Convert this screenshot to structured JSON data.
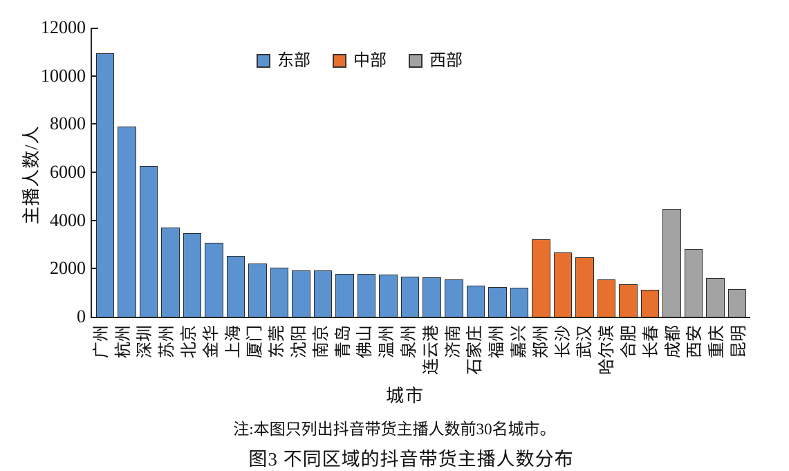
{
  "figure": {
    "note": "注:本图只列出抖音带货主播人数前30名城市。",
    "caption": "图3  不同区域的抖音带货主播人数分布"
  },
  "chart_data": {
    "type": "bar",
    "title": "图3  不同区域的抖音带货主播人数分布",
    "xlabel": "城市",
    "ylabel": "主播人数/人",
    "ylim": [
      0,
      12000
    ],
    "yticks": [
      0,
      2000,
      4000,
      6000,
      8000,
      10000,
      12000
    ],
    "grid": false,
    "legend_position": "top-center-inside",
    "axis_color": "#222222",
    "bar_border_color": "#2b2b2b",
    "regions": [
      {
        "name": "东部",
        "color": "#5B93D1"
      },
      {
        "name": "中部",
        "color": "#E8702F"
      },
      {
        "name": "西部",
        "color": "#A3A3A3"
      }
    ],
    "bars": [
      {
        "city": "广州",
        "region": "东部",
        "value": 10950
      },
      {
        "city": "杭州",
        "region": "东部",
        "value": 7900
      },
      {
        "city": "深圳",
        "region": "东部",
        "value": 6270
      },
      {
        "city": "苏州",
        "region": "东部",
        "value": 3710
      },
      {
        "city": "北京",
        "region": "东部",
        "value": 3480
      },
      {
        "city": "金华",
        "region": "东部",
        "value": 3060
      },
      {
        "city": "上海",
        "region": "东部",
        "value": 2520
      },
      {
        "city": "厦门",
        "region": "东部",
        "value": 2210
      },
      {
        "city": "东莞",
        "region": "东部",
        "value": 2040
      },
      {
        "city": "沈阳",
        "region": "东部",
        "value": 1920
      },
      {
        "city": "南京",
        "region": "东部",
        "value": 1910
      },
      {
        "city": "青岛",
        "region": "东部",
        "value": 1790
      },
      {
        "city": "佛山",
        "region": "东部",
        "value": 1780
      },
      {
        "city": "温州",
        "region": "东部",
        "value": 1740
      },
      {
        "city": "泉州",
        "region": "东部",
        "value": 1660
      },
      {
        "city": "连云港",
        "region": "东部",
        "value": 1650
      },
      {
        "city": "济南",
        "region": "东部",
        "value": 1560
      },
      {
        "city": "石家庄",
        "region": "东部",
        "value": 1290
      },
      {
        "city": "福州",
        "region": "东部",
        "value": 1230
      },
      {
        "city": "嘉兴",
        "region": "东部",
        "value": 1210
      },
      {
        "city": "郑州",
        "region": "中部",
        "value": 3210
      },
      {
        "city": "长沙",
        "region": "中部",
        "value": 2660
      },
      {
        "city": "武汉",
        "region": "中部",
        "value": 2470
      },
      {
        "city": "哈尔滨",
        "region": "中部",
        "value": 1540
      },
      {
        "city": "合肥",
        "region": "中部",
        "value": 1350
      },
      {
        "city": "长春",
        "region": "中部",
        "value": 1120
      },
      {
        "city": "成都",
        "region": "西部",
        "value": 4480
      },
      {
        "city": "西安",
        "region": "西部",
        "value": 2800
      },
      {
        "city": "重庆",
        "region": "西部",
        "value": 1610
      },
      {
        "city": "昆明",
        "region": "西部",
        "value": 1140
      }
    ]
  }
}
